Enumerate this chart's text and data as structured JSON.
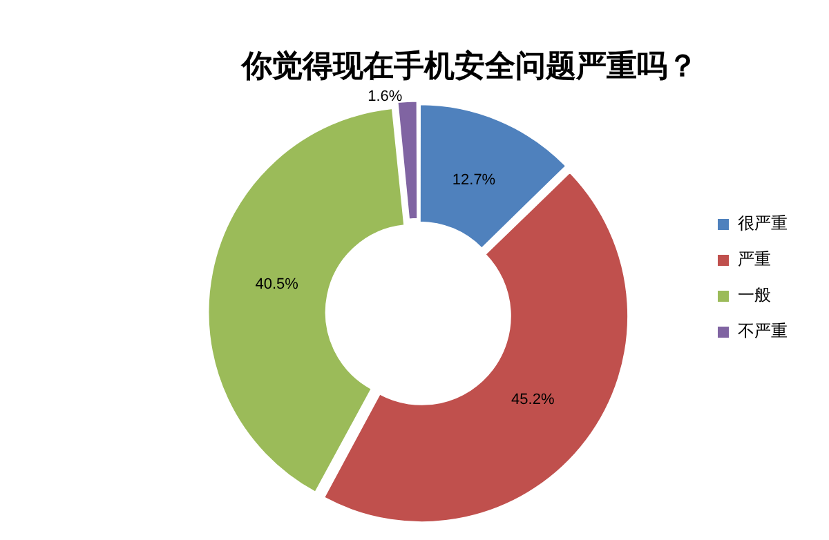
{
  "chart_data": {
    "type": "donut",
    "title": "你觉得现在手机安全问题严重吗？",
    "categories": [
      "很严重",
      "严重",
      "一般",
      "不严重"
    ],
    "values": [
      12.7,
      45.2,
      40.5,
      1.6
    ],
    "colors": [
      "#4f81bd",
      "#c0504d",
      "#9bbb59",
      "#8064a2"
    ],
    "value_labels": [
      "12.7%",
      "45.2%",
      "40.5%",
      "1.6%"
    ],
    "legend": "right"
  }
}
